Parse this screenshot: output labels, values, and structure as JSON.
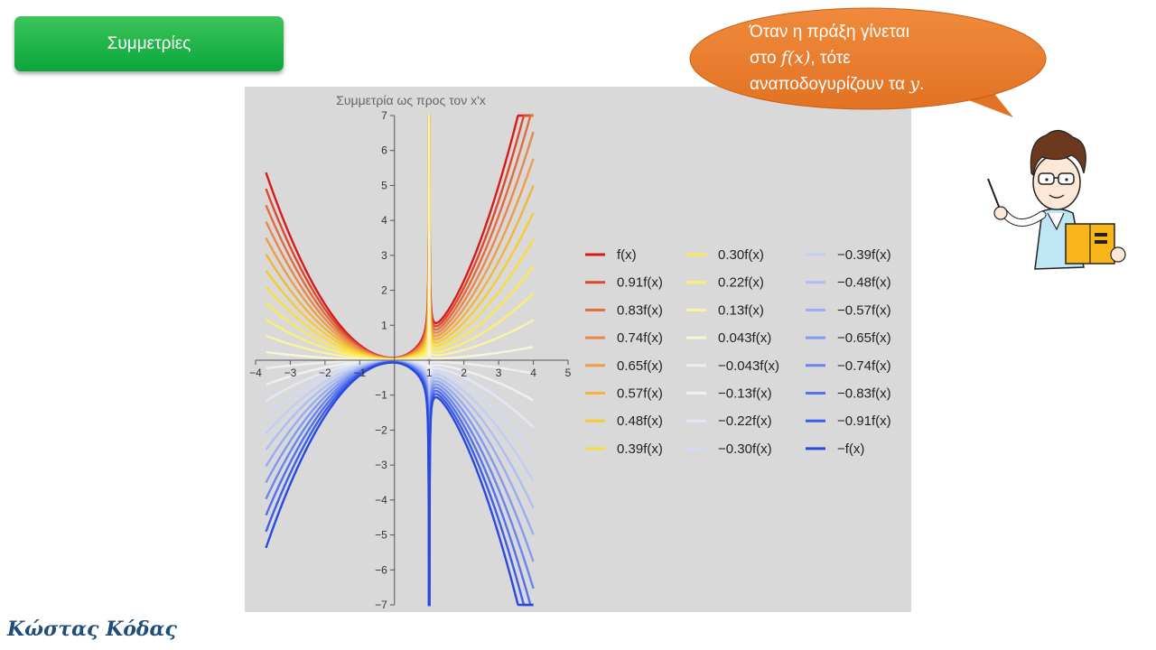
{
  "header": {
    "button_label": "Συμμετρίες"
  },
  "speech_bubble": {
    "line1": "Όταν η πράξη γίνεται",
    "line2_prefix": "στο ",
    "line2_math": "f(x)",
    "line2_suffix": ", τότε",
    "line3_prefix": "αναποδογυρίζουν τα ",
    "line3_math": "y",
    "line3_suffix": ".",
    "fill_color": "#ed7d31"
  },
  "footer": {
    "author": "Κώστας Κόδας"
  },
  "chart_data": {
    "type": "line",
    "title": "Συμμετρία ως προς τον x'x",
    "xlim": [
      -4,
      5
    ],
    "ylim": [
      -7,
      7
    ],
    "x_ticks": [
      "−4",
      "−3",
      "−2",
      "−1",
      "1",
      "2",
      "3",
      "4",
      "5"
    ],
    "y_ticks": [
      "7",
      "6",
      "5",
      "4",
      "3",
      "2",
      "1",
      "−1",
      "−2",
      "−3",
      "−4",
      "−5",
      "−6",
      "−7"
    ],
    "function_domain": [
      -3.7,
      4
    ],
    "asymptote_x": 1,
    "series": [
      {
        "name": "f(x)",
        "k": 1.0,
        "color": "#d7191c"
      },
      {
        "name": "0.91f(x)",
        "k": 0.913,
        "color": "#dc4a2d"
      },
      {
        "name": "0.83f(x)",
        "k": 0.826,
        "color": "#e26c3c"
      },
      {
        "name": "0.74f(x)",
        "k": 0.739,
        "color": "#e8884a"
      },
      {
        "name": "0.65f(x)",
        "k": 0.652,
        "color": "#ed9e47"
      },
      {
        "name": "0.57f(x)",
        "k": 0.565,
        "color": "#f2b43d"
      },
      {
        "name": "0.48f(x)",
        "k": 0.478,
        "color": "#f6cb36"
      },
      {
        "name": "0.39f(x)",
        "k": 0.391,
        "color": "#f9dc40"
      },
      {
        "name": "0.30f(x)",
        "k": 0.304,
        "color": "#fbe854"
      },
      {
        "name": "0.22f(x)",
        "k": 0.217,
        "color": "#fcee74"
      },
      {
        "name": "0.13f(x)",
        "k": 0.13,
        "color": "#fbf3a4"
      },
      {
        "name": "0.043f(x)",
        "k": 0.043,
        "color": "#f8f5d6"
      },
      {
        "name": "−0.043f(x)",
        "k": -0.043,
        "color": "#eeeeee"
      },
      {
        "name": "−0.13f(x)",
        "k": -0.13,
        "color": "#f0f0f0"
      },
      {
        "name": "−0.22f(x)",
        "k": -0.217,
        "color": "#e2e6f6"
      },
      {
        "name": "−0.30f(x)",
        "k": -0.304,
        "color": "#d2daf6"
      },
      {
        "name": "−0.39f(x)",
        "k": -0.391,
        "color": "#c2cdf6"
      },
      {
        "name": "−0.48f(x)",
        "k": -0.478,
        "color": "#aebef5"
      },
      {
        "name": "−0.57f(x)",
        "k": -0.565,
        "color": "#98acf3"
      },
      {
        "name": "−0.65f(x)",
        "k": -0.652,
        "color": "#8299f1"
      },
      {
        "name": "−0.74f(x)",
        "k": -0.739,
        "color": "#6b85ee"
      },
      {
        "name": "−0.83f(x)",
        "k": -0.826,
        "color": "#5371ea"
      },
      {
        "name": "−0.91f(x)",
        "k": -0.913,
        "color": "#3c5de6"
      },
      {
        "name": "−f(x)",
        "k": -1.0,
        "color": "#2a48e0"
      }
    ],
    "legend_position": "right",
    "grid": false
  }
}
